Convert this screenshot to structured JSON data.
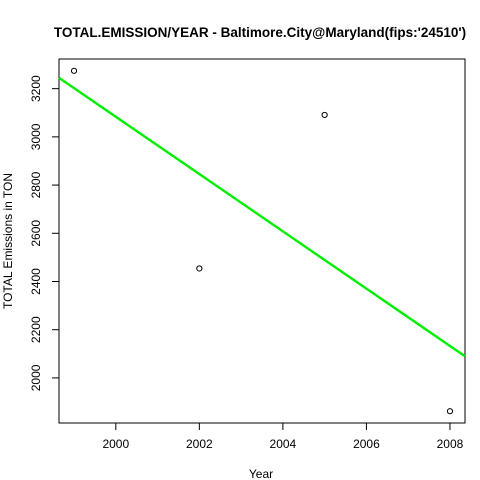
{
  "chart_data": {
    "type": "scatter",
    "title": "TOTAL.EMISSION/YEAR - Baltimore.City@Maryland(fips:'24510')",
    "xlabel": "Year",
    "ylabel": "TOTAL Emissions in TON",
    "x_ticks": [
      2000,
      2002,
      2004,
      2006,
      2008
    ],
    "y_ticks": [
      2000,
      2200,
      2400,
      2600,
      2800,
      3000,
      3200
    ],
    "xlim": [
      1998.64,
      2008.36
    ],
    "ylim": [
      1813,
      3323
    ],
    "grid": false,
    "points": [
      {
        "x": 1999,
        "y": 3274
      },
      {
        "x": 2002,
        "y": 2454
      },
      {
        "x": 2005,
        "y": 3091
      },
      {
        "x": 2008,
        "y": 1862
      }
    ],
    "trend_line": {
      "start": {
        "x": 1998.64,
        "y": 3245
      },
      "end": {
        "x": 2008.36,
        "y": 2090
      },
      "color": "#00ee00"
    },
    "point_color": "#000000"
  }
}
